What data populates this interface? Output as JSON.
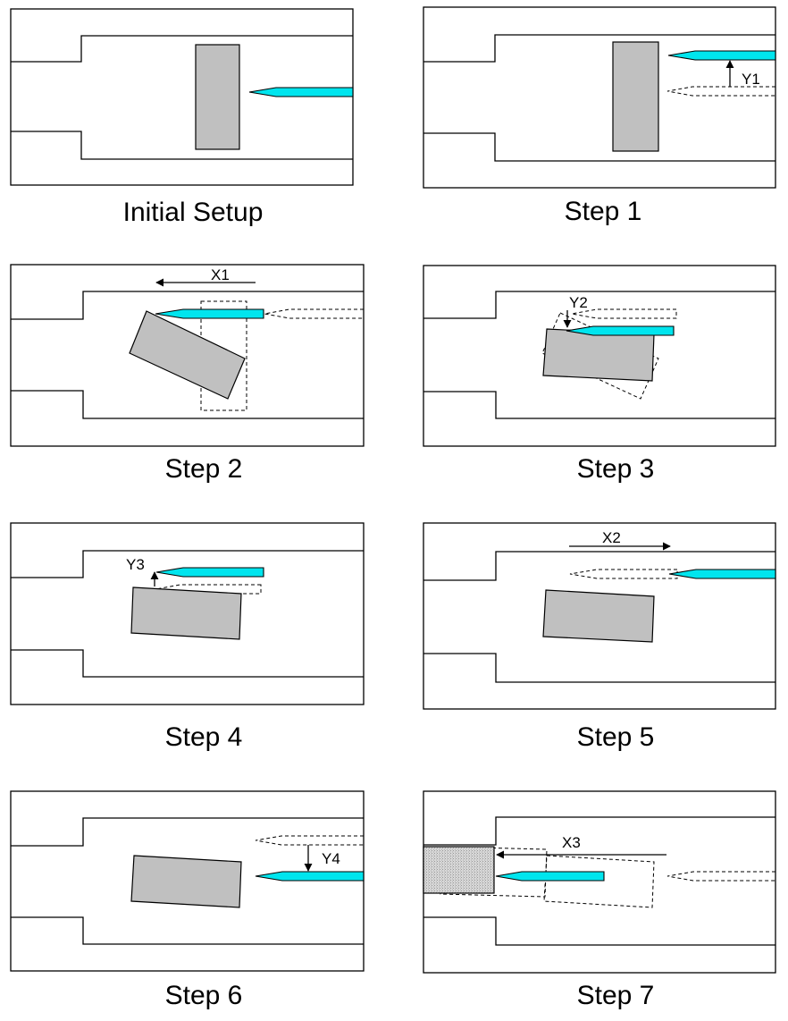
{
  "panels": [
    {
      "caption": "Initial Setup"
    },
    {
      "caption": "Step 1",
      "motion_label": "Y1"
    },
    {
      "caption": "Step 2",
      "motion_label": "X1"
    },
    {
      "caption": "Step 3",
      "motion_label": "Y2"
    },
    {
      "caption": "Step 4",
      "motion_label": "Y3"
    },
    {
      "caption": "Step 5",
      "motion_label": "X2"
    },
    {
      "caption": "Step 6",
      "motion_label": "Y4"
    },
    {
      "caption": "Step 7",
      "motion_label": "X3"
    }
  ],
  "colors": {
    "needle": "#00e5ee",
    "block": "#c0c0c0",
    "outline": "#000000"
  },
  "icons": {
    "needle": "cyan-needle-probe",
    "block": "grey-rectangular-part",
    "motion": "arrow-icon"
  }
}
